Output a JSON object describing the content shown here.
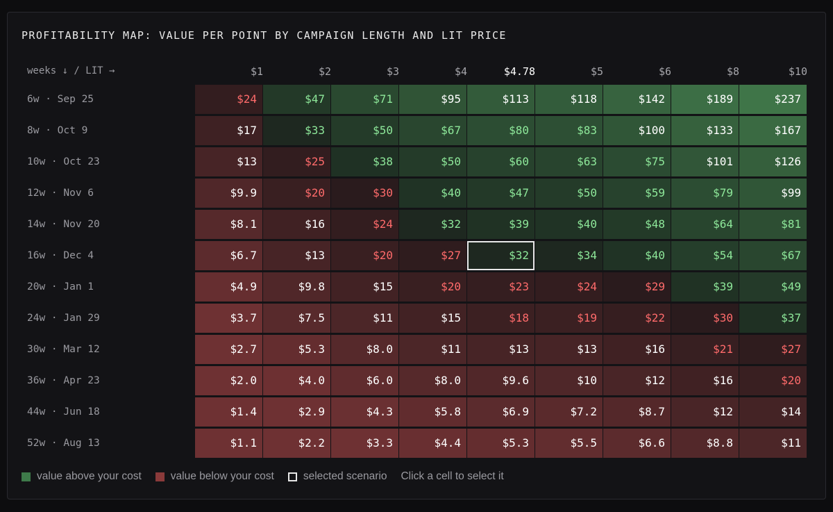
{
  "title": "PROFITABILITY MAP: VALUE PER POINT BY CAMPAIGN LENGTH AND LIT PRICE",
  "corner_label": "weeks ↓ / LIT →",
  "columns": [
    "$1",
    "$2",
    "$3",
    "$4",
    "$4.78",
    "$5",
    "$6",
    "$8",
    "$10"
  ],
  "selected_column": 4,
  "selected_row": 5,
  "rows": [
    {
      "label": "6w · Sep 25",
      "values": [
        "$24",
        "$47",
        "$71",
        "$95",
        "$113",
        "$118",
        "$142",
        "$189",
        "$237"
      ]
    },
    {
      "label": "8w · Oct 9",
      "values": [
        "$17",
        "$33",
        "$50",
        "$67",
        "$80",
        "$83",
        "$100",
        "$133",
        "$167"
      ]
    },
    {
      "label": "10w · Oct 23",
      "values": [
        "$13",
        "$25",
        "$38",
        "$50",
        "$60",
        "$63",
        "$75",
        "$101",
        "$126"
      ]
    },
    {
      "label": "12w · Nov 6",
      "values": [
        "$9.9",
        "$20",
        "$30",
        "$40",
        "$47",
        "$50",
        "$59",
        "$79",
        "$99"
      ]
    },
    {
      "label": "14w · Nov 20",
      "values": [
        "$8.1",
        "$16",
        "$24",
        "$32",
        "$39",
        "$40",
        "$48",
        "$64",
        "$81"
      ]
    },
    {
      "label": "16w · Dec 4",
      "values": [
        "$6.7",
        "$13",
        "$20",
        "$27",
        "$32",
        "$34",
        "$40",
        "$54",
        "$67"
      ]
    },
    {
      "label": "20w · Jan 1",
      "values": [
        "$4.9",
        "$9.8",
        "$15",
        "$20",
        "$23",
        "$24",
        "$29",
        "$39",
        "$49"
      ]
    },
    {
      "label": "24w · Jan 29",
      "values": [
        "$3.7",
        "$7.5",
        "$11",
        "$15",
        "$18",
        "$19",
        "$22",
        "$30",
        "$37"
      ]
    },
    {
      "label": "30w · Mar 12",
      "values": [
        "$2.7",
        "$5.3",
        "$8.0",
        "$11",
        "$13",
        "$13",
        "$16",
        "$21",
        "$27"
      ]
    },
    {
      "label": "36w · Apr 23",
      "values": [
        "$2.0",
        "$4.0",
        "$6.0",
        "$8.0",
        "$9.6",
        "$10",
        "$12",
        "$16",
        "$20"
      ]
    },
    {
      "label": "44w · Jun 18",
      "values": [
        "$1.4",
        "$2.9",
        "$4.3",
        "$5.8",
        "$6.9",
        "$7.2",
        "$8.7",
        "$12",
        "$14"
      ]
    },
    {
      "label": "52w · Aug 13",
      "values": [
        "$1.1",
        "$2.2",
        "$3.3",
        "$4.4",
        "$5.3",
        "$5.5",
        "$6.6",
        "$8.8",
        "$11"
      ]
    }
  ],
  "colors": {
    "green_strong": "#3f7548",
    "green_text": "#8ee89a",
    "red_strong": "#6e3133",
    "red_text": "#ff6b6b",
    "neutral_text": "#ffffff"
  },
  "legend": {
    "above": "value above your cost",
    "below": "value below your cost",
    "selected": "selected scenario",
    "hint": "Click a cell to select it"
  }
}
